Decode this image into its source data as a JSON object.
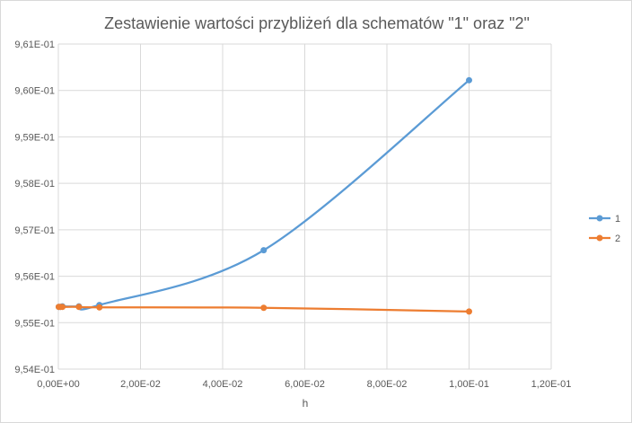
{
  "chart_data": {
    "type": "scatter",
    "title": "Zestawienie wartości przybliżeń dla schematów \"1\" oraz \"2\"",
    "xlabel": "h",
    "ylabel": "",
    "xlim": [
      0,
      0.12
    ],
    "ylim": [
      0.954,
      0.961
    ],
    "x_tick_values": [
      0,
      0.02,
      0.04,
      0.06,
      0.08,
      0.1,
      0.12
    ],
    "x_tick_labels": [
      "0,00E+00",
      "2,00E-02",
      "4,00E-02",
      "6,00E-02",
      "8,00E-02",
      "1,00E-01",
      "1,20E-01"
    ],
    "y_tick_values": [
      0.954,
      0.955,
      0.956,
      0.957,
      0.958,
      0.959,
      0.96,
      0.961
    ],
    "y_tick_labels": [
      "9,54E-01",
      "9,55E-01",
      "9,56E-01",
      "9,57E-01",
      "9,58E-01",
      "9,59E-01",
      "9,60E-01",
      "9,61E-01"
    ],
    "grid": true,
    "smooth_lines": true,
    "legend_position": "right",
    "series": [
      {
        "name": "1",
        "color": "#5b9bd5",
        "points": [
          [
            0.0001,
            0.95534
          ],
          [
            0.0005,
            0.95534
          ],
          [
            0.001,
            0.95535
          ],
          [
            0.005,
            0.95535
          ],
          [
            0.01,
            0.95538
          ],
          [
            0.05,
            0.95656
          ],
          [
            0.1,
            0.96022
          ]
        ]
      },
      {
        "name": "2",
        "color": "#ed7d31",
        "points": [
          [
            0.0001,
            0.95534
          ],
          [
            0.0005,
            0.95534
          ],
          [
            0.001,
            0.95534
          ],
          [
            0.005,
            0.95534
          ],
          [
            0.01,
            0.95533
          ],
          [
            0.05,
            0.95532
          ],
          [
            0.1,
            0.95524
          ]
        ]
      }
    ]
  }
}
